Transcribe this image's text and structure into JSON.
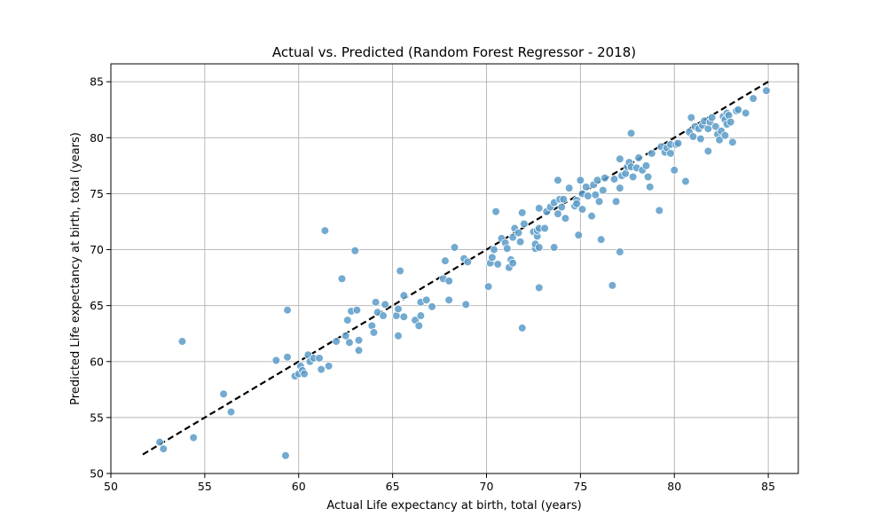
{
  "chart_data": {
    "type": "scatter",
    "title": "Actual vs. Predicted (Random Forest Regressor - 2018)",
    "xlabel": "Actual Life expectancy at birth, total (years)",
    "ylabel": "Predicted Life expectancy at birth, total (years)",
    "xlim": [
      50,
      86.6
    ],
    "ylim": [
      50,
      86.6
    ],
    "xticks": [
      50,
      55,
      60,
      65,
      70,
      75,
      80,
      85
    ],
    "yticks": [
      50,
      55,
      60,
      65,
      70,
      75,
      80,
      85
    ],
    "grid": true,
    "point_color": "#5b9bc8",
    "reference_line": {
      "from": [
        51.7,
        51.7
      ],
      "to": [
        85.0,
        85.0
      ],
      "style": "dashed",
      "color": "#000000"
    },
    "points": [
      [
        52.6,
        52.8
      ],
      [
        52.8,
        52.2
      ],
      [
        53.8,
        61.8
      ],
      [
        54.4,
        53.2
      ],
      [
        56.0,
        57.1
      ],
      [
        56.4,
        55.5
      ],
      [
        58.8,
        60.1
      ],
      [
        59.3,
        51.6
      ],
      [
        59.4,
        60.4
      ],
      [
        59.4,
        64.6
      ],
      [
        59.8,
        58.7
      ],
      [
        60.0,
        58.9
      ],
      [
        60.1,
        59.6
      ],
      [
        60.2,
        59.2
      ],
      [
        60.3,
        58.9
      ],
      [
        60.5,
        60.6
      ],
      [
        60.6,
        60.0
      ],
      [
        60.8,
        60.3
      ],
      [
        61.1,
        60.3
      ],
      [
        61.2,
        59.3
      ],
      [
        61.4,
        71.7
      ],
      [
        61.6,
        59.6
      ],
      [
        62.0,
        61.8
      ],
      [
        62.3,
        67.4
      ],
      [
        62.5,
        62.3
      ],
      [
        62.6,
        63.7
      ],
      [
        62.7,
        61.7
      ],
      [
        62.8,
        64.5
      ],
      [
        63.0,
        69.9
      ],
      [
        63.1,
        64.6
      ],
      [
        63.2,
        61.0
      ],
      [
        63.2,
        61.9
      ],
      [
        63.9,
        63.2
      ],
      [
        64.0,
        62.6
      ],
      [
        64.1,
        65.3
      ],
      [
        64.2,
        64.4
      ],
      [
        64.5,
        64.1
      ],
      [
        64.6,
        65.1
      ],
      [
        65.2,
        64.1
      ],
      [
        65.3,
        62.3
      ],
      [
        65.3,
        64.7
      ],
      [
        65.4,
        68.1
      ],
      [
        65.6,
        65.9
      ],
      [
        65.6,
        64.0
      ],
      [
        66.2,
        63.7
      ],
      [
        66.4,
        63.2
      ],
      [
        66.5,
        64.1
      ],
      [
        66.5,
        65.3
      ],
      [
        66.8,
        65.5
      ],
      [
        67.1,
        64.9
      ],
      [
        67.7,
        67.4
      ],
      [
        67.8,
        69.0
      ],
      [
        68.0,
        65.5
      ],
      [
        68.0,
        67.2
      ],
      [
        68.3,
        70.2
      ],
      [
        68.8,
        69.2
      ],
      [
        68.9,
        65.1
      ],
      [
        69.0,
        68.9
      ],
      [
        70.1,
        66.7
      ],
      [
        70.2,
        68.8
      ],
      [
        70.3,
        69.3
      ],
      [
        70.4,
        70.0
      ],
      [
        70.5,
        73.4
      ],
      [
        70.6,
        68.7
      ],
      [
        70.8,
        71.0
      ],
      [
        71.0,
        70.6
      ],
      [
        71.1,
        70.1
      ],
      [
        71.2,
        68.4
      ],
      [
        71.3,
        69.1
      ],
      [
        71.4,
        71.1
      ],
      [
        71.4,
        68.8
      ],
      [
        71.5,
        71.9
      ],
      [
        71.7,
        71.5
      ],
      [
        71.8,
        70.7
      ],
      [
        71.9,
        73.3
      ],
      [
        71.9,
        63.0
      ],
      [
        72.0,
        72.3
      ],
      [
        72.5,
        71.6
      ],
      [
        72.6,
        70.1
      ],
      [
        72.6,
        70.5
      ],
      [
        72.7,
        71.2
      ],
      [
        72.7,
        71.7
      ],
      [
        72.8,
        71.9
      ],
      [
        72.8,
        70.2
      ],
      [
        72.8,
        66.6
      ],
      [
        72.8,
        73.7
      ],
      [
        73.1,
        71.9
      ],
      [
        73.2,
        73.4
      ],
      [
        73.4,
        73.8
      ],
      [
        73.6,
        70.2
      ],
      [
        73.6,
        74.2
      ],
      [
        73.8,
        76.2
      ],
      [
        73.9,
        74.5
      ],
      [
        73.8,
        73.2
      ],
      [
        74.0,
        73.8
      ],
      [
        74.1,
        74.5
      ],
      [
        74.2,
        72.8
      ],
      [
        74.4,
        75.5
      ],
      [
        74.7,
        73.9
      ],
      [
        74.8,
        74.4
      ],
      [
        74.8,
        74.1
      ],
      [
        74.9,
        71.3
      ],
      [
        75.0,
        76.2
      ],
      [
        75.1,
        73.6
      ],
      [
        75.1,
        75.0
      ],
      [
        75.3,
        75.6
      ],
      [
        75.4,
        74.8
      ],
      [
        75.6,
        73.0
      ],
      [
        75.7,
        75.8
      ],
      [
        75.8,
        74.9
      ],
      [
        75.9,
        76.2
      ],
      [
        76.0,
        74.3
      ],
      [
        76.1,
        70.9
      ],
      [
        76.2,
        75.3
      ],
      [
        76.3,
        76.4
      ],
      [
        76.7,
        66.8
      ],
      [
        76.8,
        76.3
      ],
      [
        76.9,
        74.3
      ],
      [
        77.1,
        75.5
      ],
      [
        77.1,
        69.8
      ],
      [
        77.2,
        76.6
      ],
      [
        77.1,
        78.1
      ],
      [
        77.4,
        76.8
      ],
      [
        77.5,
        77.4
      ],
      [
        77.6,
        77.8
      ],
      [
        77.7,
        77.4
      ],
      [
        77.7,
        80.4
      ],
      [
        77.8,
        76.5
      ],
      [
        78.0,
        77.3
      ],
      [
        78.1,
        78.2
      ],
      [
        78.3,
        77.1
      ],
      [
        78.5,
        77.5
      ],
      [
        78.6,
        76.5
      ],
      [
        78.7,
        75.6
      ],
      [
        78.8,
        78.6
      ],
      [
        79.2,
        73.5
      ],
      [
        79.3,
        79.2
      ],
      [
        79.5,
        78.7
      ],
      [
        79.6,
        79.1
      ],
      [
        79.8,
        79.4
      ],
      [
        79.8,
        78.6
      ],
      [
        80.0,
        77.1
      ],
      [
        80.1,
        79.4
      ],
      [
        80.2,
        79.5
      ],
      [
        80.6,
        76.1
      ],
      [
        80.8,
        80.5
      ],
      [
        80.9,
        81.8
      ],
      [
        81.0,
        80.1
      ],
      [
        81.1,
        81.0
      ],
      [
        81.3,
        80.8
      ],
      [
        81.4,
        79.9
      ],
      [
        81.5,
        81.1
      ],
      [
        81.6,
        81.5
      ],
      [
        81.8,
        80.8
      ],
      [
        81.8,
        78.8
      ],
      [
        81.9,
        81.4
      ],
      [
        82.0,
        81.8
      ],
      [
        82.2,
        81.0
      ],
      [
        82.3,
        80.3
      ],
      [
        82.4,
        79.8
      ],
      [
        82.5,
        80.6
      ],
      [
        82.6,
        81.9
      ],
      [
        82.7,
        81.6
      ],
      [
        82.7,
        80.2
      ],
      [
        82.8,
        82.2
      ],
      [
        82.8,
        81.2
      ],
      [
        82.9,
        82.0
      ],
      [
        83.0,
        81.4
      ],
      [
        83.1,
        79.6
      ],
      [
        83.3,
        82.4
      ],
      [
        83.4,
        82.5
      ],
      [
        83.8,
        82.2
      ],
      [
        84.2,
        83.5
      ],
      [
        84.9,
        84.2
      ]
    ]
  }
}
